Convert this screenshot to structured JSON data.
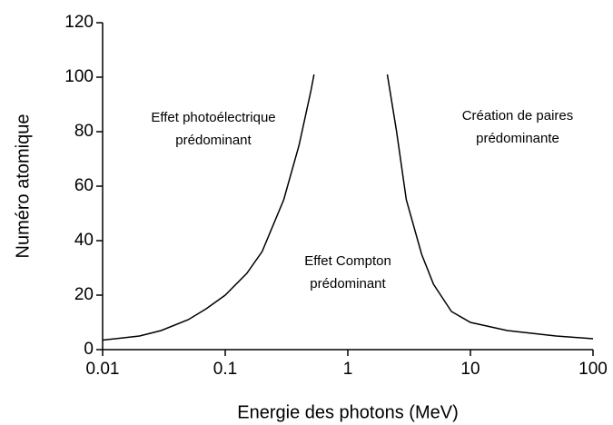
{
  "chart_data": {
    "type": "line",
    "xlabel": "Energie des photons (MeV)",
    "ylabel": "Numéro atomique",
    "xscale": "log",
    "xlim": [
      0.01,
      100
    ],
    "xticks": [
      0.01,
      0.1,
      1,
      10,
      100
    ],
    "ylim": [
      0,
      120
    ],
    "yticks": [
      0,
      20,
      40,
      60,
      80,
      100,
      120
    ],
    "grid": false,
    "series": [
      {
        "color": "#000000",
        "x": [
          0.01,
          0.02,
          0.03,
          0.05,
          0.07,
          0.1,
          0.15,
          0.2,
          0.3,
          0.4,
          0.5,
          0.53
        ],
        "values": [
          3.5,
          5,
          7,
          11,
          15,
          20,
          28,
          36,
          55,
          75,
          95,
          101
        ]
      },
      {
        "color": "#000000",
        "x": [
          2.1,
          2.5,
          3,
          4,
          5,
          7,
          10,
          20,
          50,
          100
        ],
        "values": [
          101,
          80,
          55,
          35,
          24,
          14,
          10,
          7,
          5,
          4
        ]
      }
    ],
    "annotations": [
      [
        "Effet photoélectrique",
        "prédominant"
      ],
      [
        "Effet Compton",
        "prédominant"
      ],
      [
        "Création de paires",
        "prédominante"
      ]
    ]
  }
}
